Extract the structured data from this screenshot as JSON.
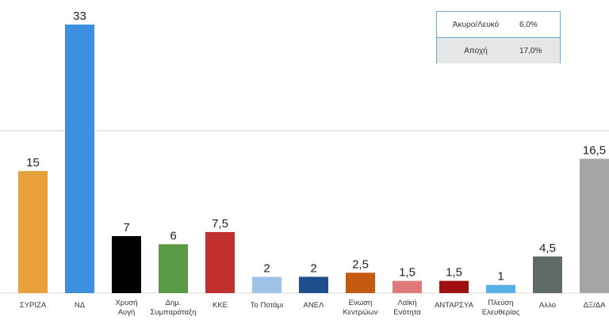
{
  "chart_data": {
    "type": "bar",
    "title": "",
    "xlabel": "",
    "ylabel": "",
    "ylim": [
      0,
      33
    ],
    "reference_line": true,
    "categories": [
      [
        "ΣΥΡΙΖΑ"
      ],
      [
        "ΝΔ"
      ],
      [
        "Χρυσή",
        "Αυγή"
      ],
      [
        "Δημ.",
        "Συμπαράταξη"
      ],
      [
        "ΚΚΕ"
      ],
      [
        "Το Ποτάμι"
      ],
      [
        "ΑΝΕΛ"
      ],
      [
        "Ενωση",
        "Κεντρώων"
      ],
      [
        "Λαϊκή",
        "Ενότητα"
      ],
      [
        "ΑΝΤΑΡΣΥΑ"
      ],
      [
        "Πλεύση",
        "Ελευθερίας"
      ],
      [
        "Αλλο"
      ],
      [
        "ΔΞ/ΔΑ"
      ]
    ],
    "values": [
      15,
      33,
      7,
      6,
      7.5,
      2,
      2,
      2.5,
      1.5,
      1.5,
      1,
      4.5,
      16.5
    ],
    "value_labels": [
      "15",
      "33",
      "7",
      "6",
      "7,5",
      "2",
      "2",
      "2,5",
      "1,5",
      "1,5",
      "1",
      "4,5",
      "16,5"
    ],
    "colors": [
      "#e8a03c",
      "#3d8fe0",
      "#000000",
      "#5b9a45",
      "#c0302f",
      "#9dc3e6",
      "#1f4e8c",
      "#c55a11",
      "#e07a7a",
      "#a00f0f",
      "#56b0e8",
      "#5f6b67",
      "#a6a6a6"
    ]
  },
  "info_box": {
    "rows": [
      {
        "label": "Άκυρο/Λευκό",
        "value": "6,0%"
      },
      {
        "label": "Αποχή",
        "value": "17,0%"
      }
    ]
  }
}
